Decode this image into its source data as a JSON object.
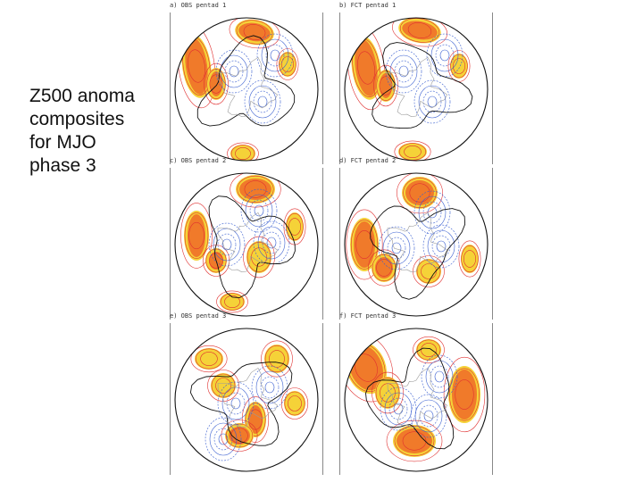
{
  "slide": {
    "title_lines": [
      "Z500 anoma",
      "composites",
      "for MJO",
      "phase 3"
    ]
  },
  "panels": [
    {
      "label": "a) OBS  pentad  1"
    },
    {
      "label": "b) FCT  pentad  1"
    },
    {
      "label": "c) OBS  pentad  2"
    },
    {
      "label": "d) FCT  pentad  2"
    },
    {
      "label": "e) OBS  pentad  3"
    },
    {
      "label": "f) FCT  pentad  3"
    }
  ],
  "colors": {
    "positive_strong": "#f07a2a",
    "positive_weak": "#f5d238",
    "positive_contour": "#e03030",
    "negative_contour": "#3a5fd0",
    "zero_contour": "#111111",
    "coastline": "#9a9a9a"
  }
}
